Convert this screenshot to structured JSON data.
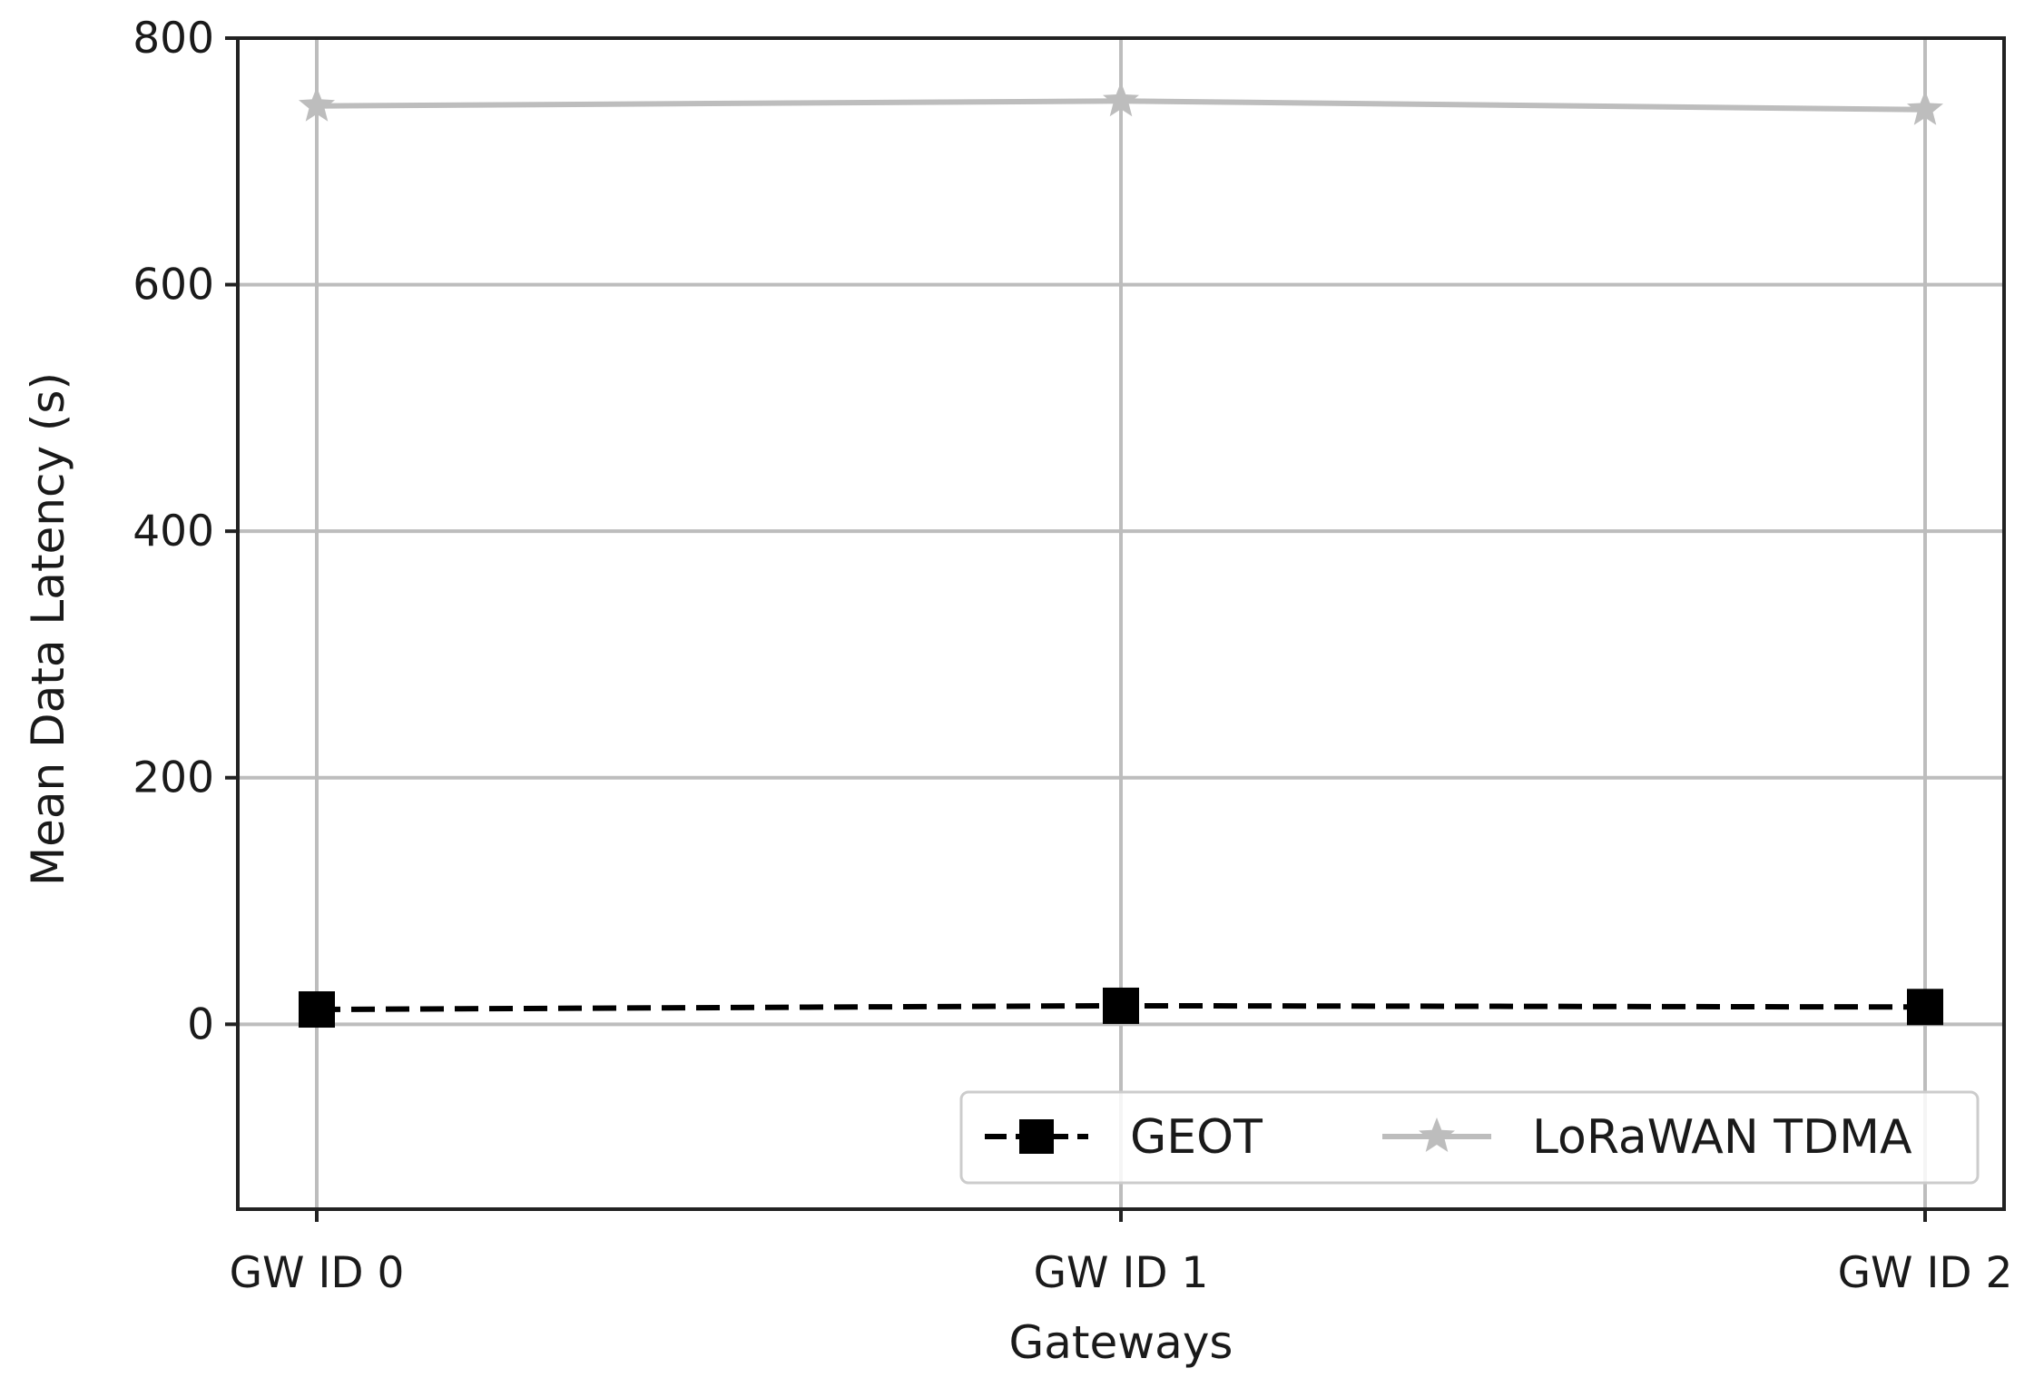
{
  "chart_data": {
    "type": "line",
    "xlabel": "Gateways",
    "ylabel": "Mean Data Latency (s)",
    "categories": [
      "GW ID 0",
      "GW ID 1",
      "GW ID 2"
    ],
    "ylim": [
      -150,
      800
    ],
    "yticks": [
      0,
      200,
      400,
      600,
      800
    ],
    "grid": true,
    "legend_position": "lower-right",
    "series": [
      {
        "name": "GEOT",
        "values": [
          12,
          15,
          14
        ],
        "color": "#000000",
        "line_style": "dashed",
        "marker": "square"
      },
      {
        "name": "LoRaWAN TDMA",
        "values": [
          745,
          749,
          742
        ],
        "color": "#bdbdbd",
        "line_style": "solid",
        "marker": "star"
      }
    ]
  }
}
